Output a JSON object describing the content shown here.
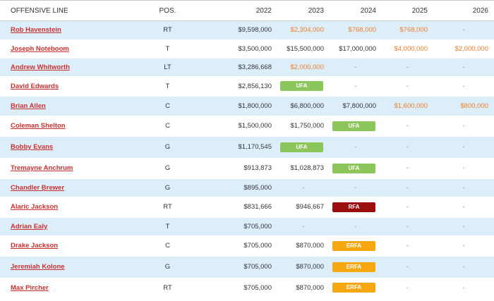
{
  "headers": {
    "name": "OFFENSIVE LINE",
    "pos": "POS.",
    "y2022": "2022",
    "y2023": "2023",
    "y2024": "2024",
    "y2025": "2025",
    "y2026": "2026"
  },
  "colors": {
    "link": "#c8302f",
    "orange": "#f07c2a",
    "ufa": "#8cc65a",
    "rfa": "#9c0d0d",
    "erfa": "#f7a810",
    "shade": "#ddeefb"
  },
  "rows": [
    {
      "name": "Rob Havenstein",
      "pos": "RT",
      "y2022": {
        "text": "$9,598,000",
        "type": "plain"
      },
      "y2023": {
        "text": "$2,304,000",
        "type": "orange"
      },
      "y2024": {
        "text": "$768,000",
        "type": "orange"
      },
      "y2025": {
        "text": "$768,000",
        "type": "orange"
      },
      "y2026": {
        "text": "-",
        "type": "dash"
      }
    },
    {
      "name": "Joseph Noteboom",
      "pos": "T",
      "y2022": {
        "text": "$3,500,000",
        "type": "plain"
      },
      "y2023": {
        "text": "$15,500,000",
        "type": "plain"
      },
      "y2024": {
        "text": "$17,000,000",
        "type": "plain"
      },
      "y2025": {
        "text": "$4,000,000",
        "type": "orange"
      },
      "y2026": {
        "text": "$2,000,000",
        "type": "orange"
      }
    },
    {
      "name": "Andrew Whitworth",
      "pos": "LT",
      "y2022": {
        "text": "$3,286,668",
        "type": "plain"
      },
      "y2023": {
        "text": "$2,000,000",
        "type": "orange"
      },
      "y2024": {
        "text": "-",
        "type": "dash"
      },
      "y2025": {
        "text": "-",
        "type": "dash"
      },
      "y2026": {
        "text": "-",
        "type": "dash"
      }
    },
    {
      "name": "David Edwards",
      "pos": "T",
      "y2022": {
        "text": "$2,856,130",
        "type": "plain"
      },
      "y2023": {
        "text": "UFA",
        "type": "ufa"
      },
      "y2024": {
        "text": "-",
        "type": "dash"
      },
      "y2025": {
        "text": "-",
        "type": "dash"
      },
      "y2026": {
        "text": "-",
        "type": "dash"
      }
    },
    {
      "name": "Brian Allen",
      "pos": "C",
      "y2022": {
        "text": "$1,800,000",
        "type": "plain"
      },
      "y2023": {
        "text": "$6,800,000",
        "type": "plain"
      },
      "y2024": {
        "text": "$7,800,000",
        "type": "plain"
      },
      "y2025": {
        "text": "$1,600,000",
        "type": "orange"
      },
      "y2026": {
        "text": "$800,000",
        "type": "orange"
      }
    },
    {
      "name": "Coleman Shelton",
      "pos": "C",
      "y2022": {
        "text": "$1,500,000",
        "type": "plain"
      },
      "y2023": {
        "text": "$1,750,000",
        "type": "plain"
      },
      "y2024": {
        "text": "UFA",
        "type": "ufa"
      },
      "y2025": {
        "text": "-",
        "type": "dash"
      },
      "y2026": {
        "text": "-",
        "type": "dash"
      }
    },
    {
      "name": "Bobby Evans",
      "pos": "G",
      "y2022": {
        "text": "$1,170,545",
        "type": "plain"
      },
      "y2023": {
        "text": "UFA",
        "type": "ufa"
      },
      "y2024": {
        "text": "-",
        "type": "dash"
      },
      "y2025": {
        "text": "-",
        "type": "dash"
      },
      "y2026": {
        "text": "-",
        "type": "dash"
      }
    },
    {
      "name": "Tremayne Anchrum",
      "pos": "G",
      "y2022": {
        "text": "$913,873",
        "type": "plain"
      },
      "y2023": {
        "text": "$1,028,873",
        "type": "plain"
      },
      "y2024": {
        "text": "UFA",
        "type": "ufa"
      },
      "y2025": {
        "text": "-",
        "type": "dash"
      },
      "y2026": {
        "text": "-",
        "type": "dash"
      }
    },
    {
      "name": "Chandler Brewer",
      "pos": "G",
      "y2022": {
        "text": "$895,000",
        "type": "plain"
      },
      "y2023": {
        "text": "-",
        "type": "dash"
      },
      "y2024": {
        "text": "-",
        "type": "dash"
      },
      "y2025": {
        "text": "-",
        "type": "dash"
      },
      "y2026": {
        "text": "-",
        "type": "dash"
      }
    },
    {
      "name": "Alaric Jackson",
      "pos": "RT",
      "y2022": {
        "text": "$831,666",
        "type": "plain"
      },
      "y2023": {
        "text": "$946,667",
        "type": "plain"
      },
      "y2024": {
        "text": "RFA",
        "type": "rfa"
      },
      "y2025": {
        "text": "-",
        "type": "dash"
      },
      "y2026": {
        "text": "-",
        "type": "dash"
      }
    },
    {
      "name": "Adrian Ealy",
      "pos": "T",
      "y2022": {
        "text": "$705,000",
        "type": "plain"
      },
      "y2023": {
        "text": "-",
        "type": "dash"
      },
      "y2024": {
        "text": "-",
        "type": "dash"
      },
      "y2025": {
        "text": "-",
        "type": "dash"
      },
      "y2026": {
        "text": "-",
        "type": "dash"
      }
    },
    {
      "name": "Drake Jackson",
      "pos": "C",
      "y2022": {
        "text": "$705,000",
        "type": "plain"
      },
      "y2023": {
        "text": "$870,000",
        "type": "plain"
      },
      "y2024": {
        "text": "ERFA",
        "type": "erfa"
      },
      "y2025": {
        "text": "-",
        "type": "dash"
      },
      "y2026": {
        "text": "-",
        "type": "dash"
      }
    },
    {
      "name": "Jeremiah Kolone",
      "pos": "G",
      "y2022": {
        "text": "$705,000",
        "type": "plain"
      },
      "y2023": {
        "text": "$870,000",
        "type": "plain"
      },
      "y2024": {
        "text": "ERFA",
        "type": "erfa"
      },
      "y2025": {
        "text": "-",
        "type": "dash"
      },
      "y2026": {
        "text": "-",
        "type": "dash"
      }
    },
    {
      "name": "Max Pircher",
      "pos": "RT",
      "y2022": {
        "text": "$705,000",
        "type": "plain"
      },
      "y2023": {
        "text": "$870,000",
        "type": "plain"
      },
      "y2024": {
        "text": "ERFA",
        "type": "erfa"
      },
      "y2025": {
        "text": "-",
        "type": "dash"
      },
      "y2026": {
        "text": "-",
        "type": "dash"
      }
    }
  ]
}
